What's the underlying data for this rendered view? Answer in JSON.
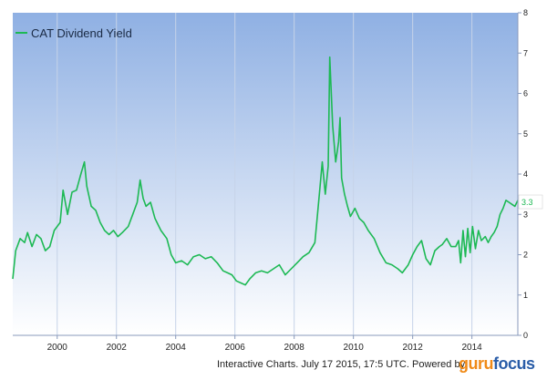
{
  "chart_data": {
    "type": "line",
    "series": [
      {
        "name": "CAT Dividend Yield",
        "color": "#1db954",
        "points": [
          [
            1998.5,
            1.4
          ],
          [
            1998.6,
            2.1
          ],
          [
            1998.75,
            2.4
          ],
          [
            1998.9,
            2.3
          ],
          [
            1999.0,
            2.55
          ],
          [
            1999.15,
            2.2
          ],
          [
            1999.3,
            2.5
          ],
          [
            1999.45,
            2.4
          ],
          [
            1999.6,
            2.1
          ],
          [
            1999.75,
            2.2
          ],
          [
            1999.9,
            2.6
          ],
          [
            2000.1,
            2.8
          ],
          [
            2000.2,
            3.6
          ],
          [
            2000.35,
            3.0
          ],
          [
            2000.5,
            3.55
          ],
          [
            2000.65,
            3.6
          ],
          [
            2000.8,
            4.0
          ],
          [
            2000.92,
            4.3
          ],
          [
            2001.0,
            3.7
          ],
          [
            2001.15,
            3.2
          ],
          [
            2001.3,
            3.1
          ],
          [
            2001.45,
            2.8
          ],
          [
            2001.6,
            2.6
          ],
          [
            2001.75,
            2.5
          ],
          [
            2001.9,
            2.6
          ],
          [
            2002.05,
            2.45
          ],
          [
            2002.2,
            2.55
          ],
          [
            2002.4,
            2.7
          ],
          [
            2002.55,
            3.0
          ],
          [
            2002.7,
            3.3
          ],
          [
            2002.8,
            3.85
          ],
          [
            2002.9,
            3.4
          ],
          [
            2003.0,
            3.2
          ],
          [
            2003.15,
            3.3
          ],
          [
            2003.3,
            2.9
          ],
          [
            2003.5,
            2.6
          ],
          [
            2003.7,
            2.4
          ],
          [
            2003.85,
            2.0
          ],
          [
            2004.0,
            1.8
          ],
          [
            2004.2,
            1.85
          ],
          [
            2004.4,
            1.75
          ],
          [
            2004.6,
            1.95
          ],
          [
            2004.8,
            2.0
          ],
          [
            2005.0,
            1.9
          ],
          [
            2005.2,
            1.95
          ],
          [
            2005.4,
            1.8
          ],
          [
            2005.6,
            1.6
          ],
          [
            2005.75,
            1.55
          ],
          [
            2005.9,
            1.5
          ],
          [
            2006.05,
            1.35
          ],
          [
            2006.2,
            1.3
          ],
          [
            2006.35,
            1.25
          ],
          [
            2006.5,
            1.4
          ],
          [
            2006.7,
            1.55
          ],
          [
            2006.9,
            1.6
          ],
          [
            2007.1,
            1.55
          ],
          [
            2007.3,
            1.65
          ],
          [
            2007.5,
            1.75
          ],
          [
            2007.7,
            1.5
          ],
          [
            2007.9,
            1.65
          ],
          [
            2008.1,
            1.8
          ],
          [
            2008.3,
            1.95
          ],
          [
            2008.5,
            2.05
          ],
          [
            2008.7,
            2.3
          ],
          [
            2008.85,
            3.5
          ],
          [
            2008.95,
            4.3
          ],
          [
            2009.05,
            3.5
          ],
          [
            2009.15,
            4.2
          ],
          [
            2009.2,
            6.9
          ],
          [
            2009.3,
            5.2
          ],
          [
            2009.4,
            4.3
          ],
          [
            2009.5,
            4.8
          ],
          [
            2009.55,
            5.4
          ],
          [
            2009.6,
            3.9
          ],
          [
            2009.7,
            3.5
          ],
          [
            2009.8,
            3.2
          ],
          [
            2009.9,
            2.95
          ],
          [
            2010.05,
            3.15
          ],
          [
            2010.2,
            2.9
          ],
          [
            2010.35,
            2.8
          ],
          [
            2010.5,
            2.6
          ],
          [
            2010.7,
            2.4
          ],
          [
            2010.9,
            2.05
          ],
          [
            2011.1,
            1.8
          ],
          [
            2011.3,
            1.75
          ],
          [
            2011.5,
            1.65
          ],
          [
            2011.65,
            1.55
          ],
          [
            2011.85,
            1.75
          ],
          [
            2012.0,
            2.0
          ],
          [
            2012.15,
            2.2
          ],
          [
            2012.3,
            2.35
          ],
          [
            2012.45,
            1.9
          ],
          [
            2012.6,
            1.75
          ],
          [
            2012.75,
            2.1
          ],
          [
            2012.9,
            2.2
          ],
          [
            2013.0,
            2.25
          ],
          [
            2013.15,
            2.4
          ],
          [
            2013.3,
            2.2
          ],
          [
            2013.45,
            2.2
          ],
          [
            2013.55,
            2.35
          ],
          [
            2013.62,
            1.8
          ],
          [
            2013.7,
            2.6
          ],
          [
            2013.78,
            1.95
          ],
          [
            2013.86,
            2.65
          ],
          [
            2013.94,
            2.05
          ],
          [
            2014.02,
            2.7
          ],
          [
            2014.12,
            2.15
          ],
          [
            2014.22,
            2.6
          ],
          [
            2014.32,
            2.35
          ],
          [
            2014.45,
            2.45
          ],
          [
            2014.55,
            2.3
          ],
          [
            2014.65,
            2.45
          ],
          [
            2014.75,
            2.55
          ],
          [
            2014.85,
            2.7
          ],
          [
            2014.95,
            3.0
          ],
          [
            2015.05,
            3.15
          ],
          [
            2015.15,
            3.35
          ],
          [
            2015.25,
            3.3
          ],
          [
            2015.35,
            3.25
          ],
          [
            2015.45,
            3.2
          ],
          [
            2015.55,
            3.35
          ]
        ]
      }
    ],
    "xlim": [
      1998.5,
      2015.55
    ],
    "ylim": [
      0,
      8
    ],
    "x_ticks": [
      "2000",
      "2002",
      "2004",
      "2006",
      "2008",
      "2010",
      "2012",
      "2014"
    ],
    "y_ticks": [
      "0",
      "1",
      "2",
      "3",
      "4",
      "5",
      "6",
      "7",
      "8"
    ],
    "last_value_label": "3.3",
    "legend_position": "top-left",
    "grid": "vertical"
  },
  "legend_label": "CAT Dividend Yield",
  "footer_text": "Interactive Charts. July 17 2015, 17:5 UTC. Powered by",
  "logo_guru": "guru",
  "logo_focus": "focus",
  "colors": {
    "plot_top": "#8fb0e3",
    "plot_bottom": "#ffffff",
    "grid": "#c6d3e8",
    "line": "#1db954"
  }
}
